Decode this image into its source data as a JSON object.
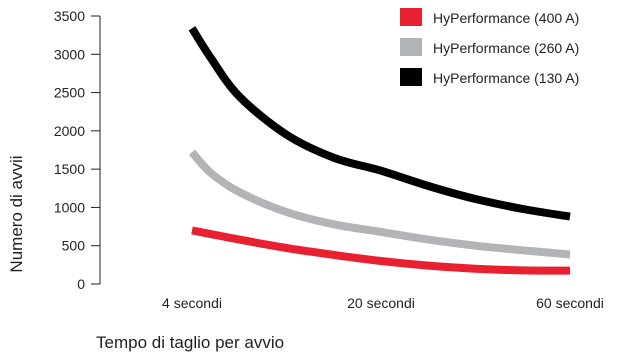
{
  "chart_data": {
    "type": "line",
    "title": "",
    "xlabel": "Tempo di taglio per avvio",
    "ylabel": "Numero di avvii",
    "categories": [
      "4 secondi",
      "20 secondi",
      "60 secondi"
    ],
    "ylim": [
      0,
      3500
    ],
    "yticks": [
      0,
      500,
      1000,
      1500,
      2000,
      2500,
      3000,
      3500
    ],
    "grid": false,
    "legend_position": "top-right",
    "series": [
      {
        "name": "HyPerformance (400 A)",
        "color": "#e8202f",
        "points": [
          {
            "x": 0,
            "y": 700
          },
          {
            "x": 0.25,
            "y": 580
          },
          {
            "x": 0.5,
            "y": 470
          },
          {
            "x": 0.75,
            "y": 380
          },
          {
            "x": 1,
            "y": 300
          },
          {
            "x": 1.25,
            "y": 240
          },
          {
            "x": 1.5,
            "y": 200
          },
          {
            "x": 1.75,
            "y": 178
          },
          {
            "x": 2,
            "y": 175
          }
        ]
      },
      {
        "name": "HyPerformance (260 A)",
        "color": "#b2b4b6",
        "points": [
          {
            "x": 0,
            "y": 1720
          },
          {
            "x": 0.1,
            "y": 1450
          },
          {
            "x": 0.25,
            "y": 1200
          },
          {
            "x": 0.5,
            "y": 940
          },
          {
            "x": 0.75,
            "y": 780
          },
          {
            "x": 1,
            "y": 680
          },
          {
            "x": 1.25,
            "y": 580
          },
          {
            "x": 1.5,
            "y": 500
          },
          {
            "x": 1.75,
            "y": 440
          },
          {
            "x": 2,
            "y": 385
          }
        ]
      },
      {
        "name": "HyPerformance (130 A)",
        "color": "#000000",
        "points": [
          {
            "x": 0,
            "y": 3340
          },
          {
            "x": 0.1,
            "y": 2950
          },
          {
            "x": 0.25,
            "y": 2450
          },
          {
            "x": 0.5,
            "y": 1950
          },
          {
            "x": 0.75,
            "y": 1650
          },
          {
            "x": 1,
            "y": 1480
          },
          {
            "x": 1.25,
            "y": 1280
          },
          {
            "x": 1.5,
            "y": 1110
          },
          {
            "x": 1.75,
            "y": 980
          },
          {
            "x": 2,
            "y": 880
          }
        ]
      }
    ]
  }
}
